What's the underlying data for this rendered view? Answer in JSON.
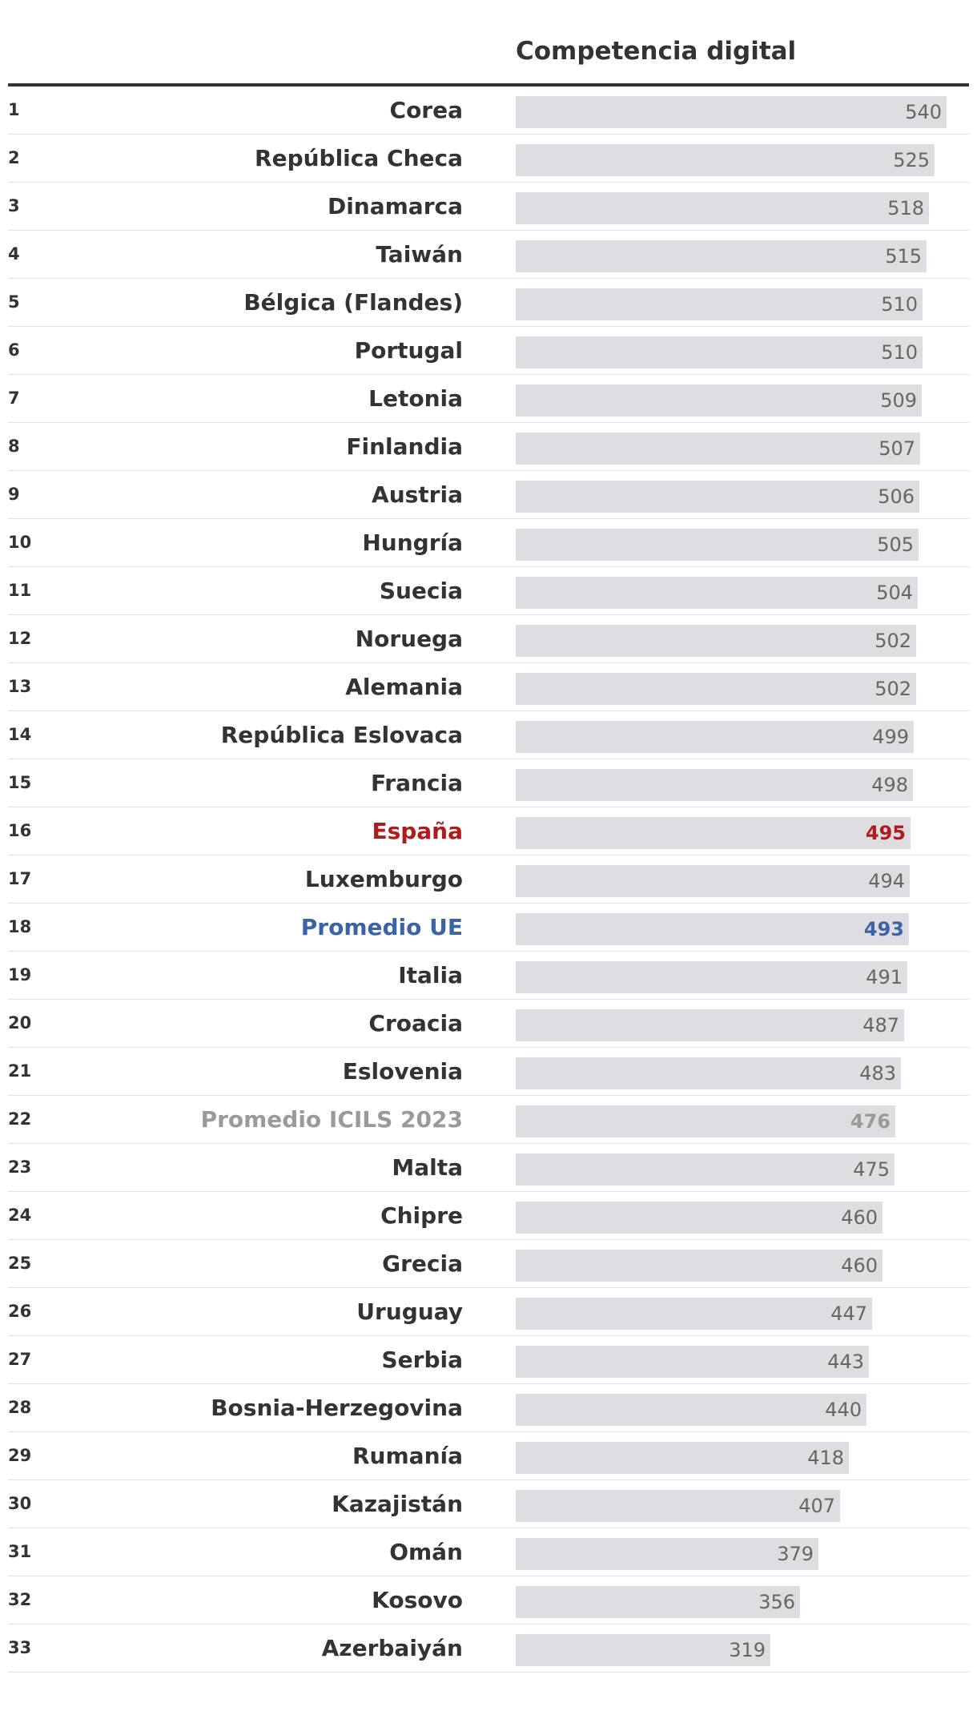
{
  "chart_data": {
    "type": "bar",
    "orientation": "horizontal",
    "title": "Competencia digital",
    "xlim": [
      0,
      580
    ],
    "ranks": [
      "1",
      "2",
      "3",
      "4",
      "5",
      "6",
      "7",
      "8",
      "9",
      "10",
      "11",
      "12",
      "13",
      "14",
      "15",
      "16",
      "17",
      "18",
      "19",
      "20",
      "21",
      "22",
      "23",
      "24",
      "25",
      "26",
      "27",
      "28",
      "29",
      "30",
      "31",
      "32",
      "33"
    ],
    "categories": [
      "Corea",
      "República Checa",
      "Dinamarca",
      "Taiwán",
      "Bélgica (Flandes)",
      "Portugal",
      "Letonia",
      "Finlandia",
      "Austria",
      "Hungría",
      "Suecia",
      "Noruega",
      "Alemania",
      "República Eslovaca",
      "Francia",
      "España",
      "Luxemburgo",
      "Promedio UE",
      "Italia",
      "Croacia",
      "Eslovenia",
      "Promedio ICILS 2023",
      "Malta",
      "Chipre",
      "Grecia",
      "Uruguay",
      "Serbia",
      "Bosnia-Herzegovina",
      "Rumanía",
      "Kazajistán",
      "Omán",
      "Kosovo",
      "Azerbaiyán"
    ],
    "values": [
      540,
      525,
      518,
      515,
      510,
      510,
      509,
      507,
      506,
      505,
      504,
      502,
      502,
      499,
      498,
      495,
      494,
      493,
      491,
      487,
      483,
      476,
      475,
      460,
      460,
      447,
      443,
      440,
      418,
      407,
      379,
      356,
      319
    ],
    "highlights": {
      "España": {
        "color": "#b01c1c",
        "cls": "hl-es"
      },
      "Promedio UE": {
        "color": "#3b64a6",
        "cls": "hl-eu"
      },
      "Promedio ICILS 2023": {
        "color": "#9a9a9a",
        "cls": "hl-icils"
      }
    },
    "bar_color": "#dedde2"
  }
}
